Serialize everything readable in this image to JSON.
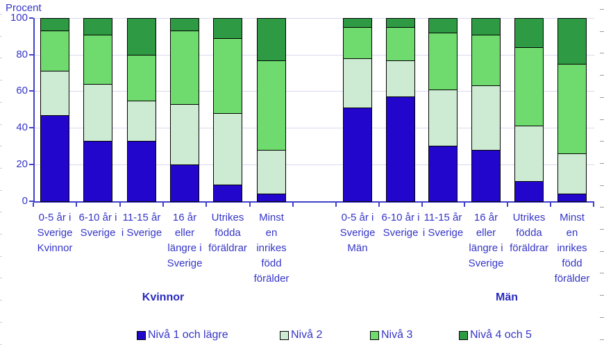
{
  "colors": {
    "text": "#3535C8",
    "axis": "#4040CC",
    "grid": "#D9D9F0",
    "bar_border": "#000000"
  },
  "chart_data": {
    "type": "bar",
    "stacked": true,
    "title": "",
    "ylabel": "Procent",
    "xlabel": "",
    "ylim": [
      0,
      100
    ],
    "yticks": [
      0,
      20,
      40,
      60,
      80,
      100
    ],
    "grid": true,
    "legend_position": "bottom",
    "legend": [
      {
        "label": "Nivå 1 och lägre",
        "color": "#2306CB"
      },
      {
        "label": "Nivå 2",
        "color": "#CDEBD3"
      },
      {
        "label": "Nivå 3",
        "color": "#6FDB6F"
      },
      {
        "label": "Nivå 4 och 5",
        "color": "#2F9A44"
      }
    ],
    "groups": [
      {
        "name": "Kvinnor",
        "categories": [
          {
            "label_lines": [
              "0-5 år i",
              "Sverige",
              "Kvinnor"
            ],
            "values": [
              47,
              24,
              22,
              7
            ]
          },
          {
            "label_lines": [
              "6-10 år i",
              "Sverige"
            ],
            "values": [
              33,
              31,
              27,
              9
            ]
          },
          {
            "label_lines": [
              "11-15 år",
              "i Sverige"
            ],
            "values": [
              33,
              22,
              25,
              20
            ]
          },
          {
            "label_lines": [
              "16 år",
              "eller",
              "längre i",
              "Sverige"
            ],
            "values": [
              20,
              33,
              40,
              7
            ]
          },
          {
            "label_lines": [
              "Utrikes",
              "födda",
              "föräldrar"
            ],
            "values": [
              9,
              39,
              41,
              11
            ]
          },
          {
            "label_lines": [
              "Minst",
              "en",
              "inrikes",
              "född",
              "förälder"
            ],
            "values": [
              4,
              24,
              49,
              23
            ]
          }
        ]
      },
      {
        "name": "Män",
        "categories": [
          {
            "label_lines": [
              "0-5 år i",
              "Sverige",
              "Män"
            ],
            "values": [
              51,
              27,
              17,
              5
            ]
          },
          {
            "label_lines": [
              "6-10 år i",
              "Sverige"
            ],
            "values": [
              57,
              20,
              18,
              5
            ]
          },
          {
            "label_lines": [
              "11-15 år",
              "i Sverige"
            ],
            "values": [
              30,
              31,
              31,
              8
            ]
          },
          {
            "label_lines": [
              "16 år",
              "eller",
              "längre i",
              "Sverige"
            ],
            "values": [
              28,
              35,
              28,
              9
            ]
          },
          {
            "label_lines": [
              "Utrikes",
              "födda",
              "föräldrar"
            ],
            "values": [
              11,
              30,
              43,
              16
            ]
          },
          {
            "label_lines": [
              "Minst",
              "en",
              "inrikes",
              "född",
              "förälder"
            ],
            "values": [
              4,
              22,
              49,
              25
            ]
          }
        ]
      }
    ]
  }
}
